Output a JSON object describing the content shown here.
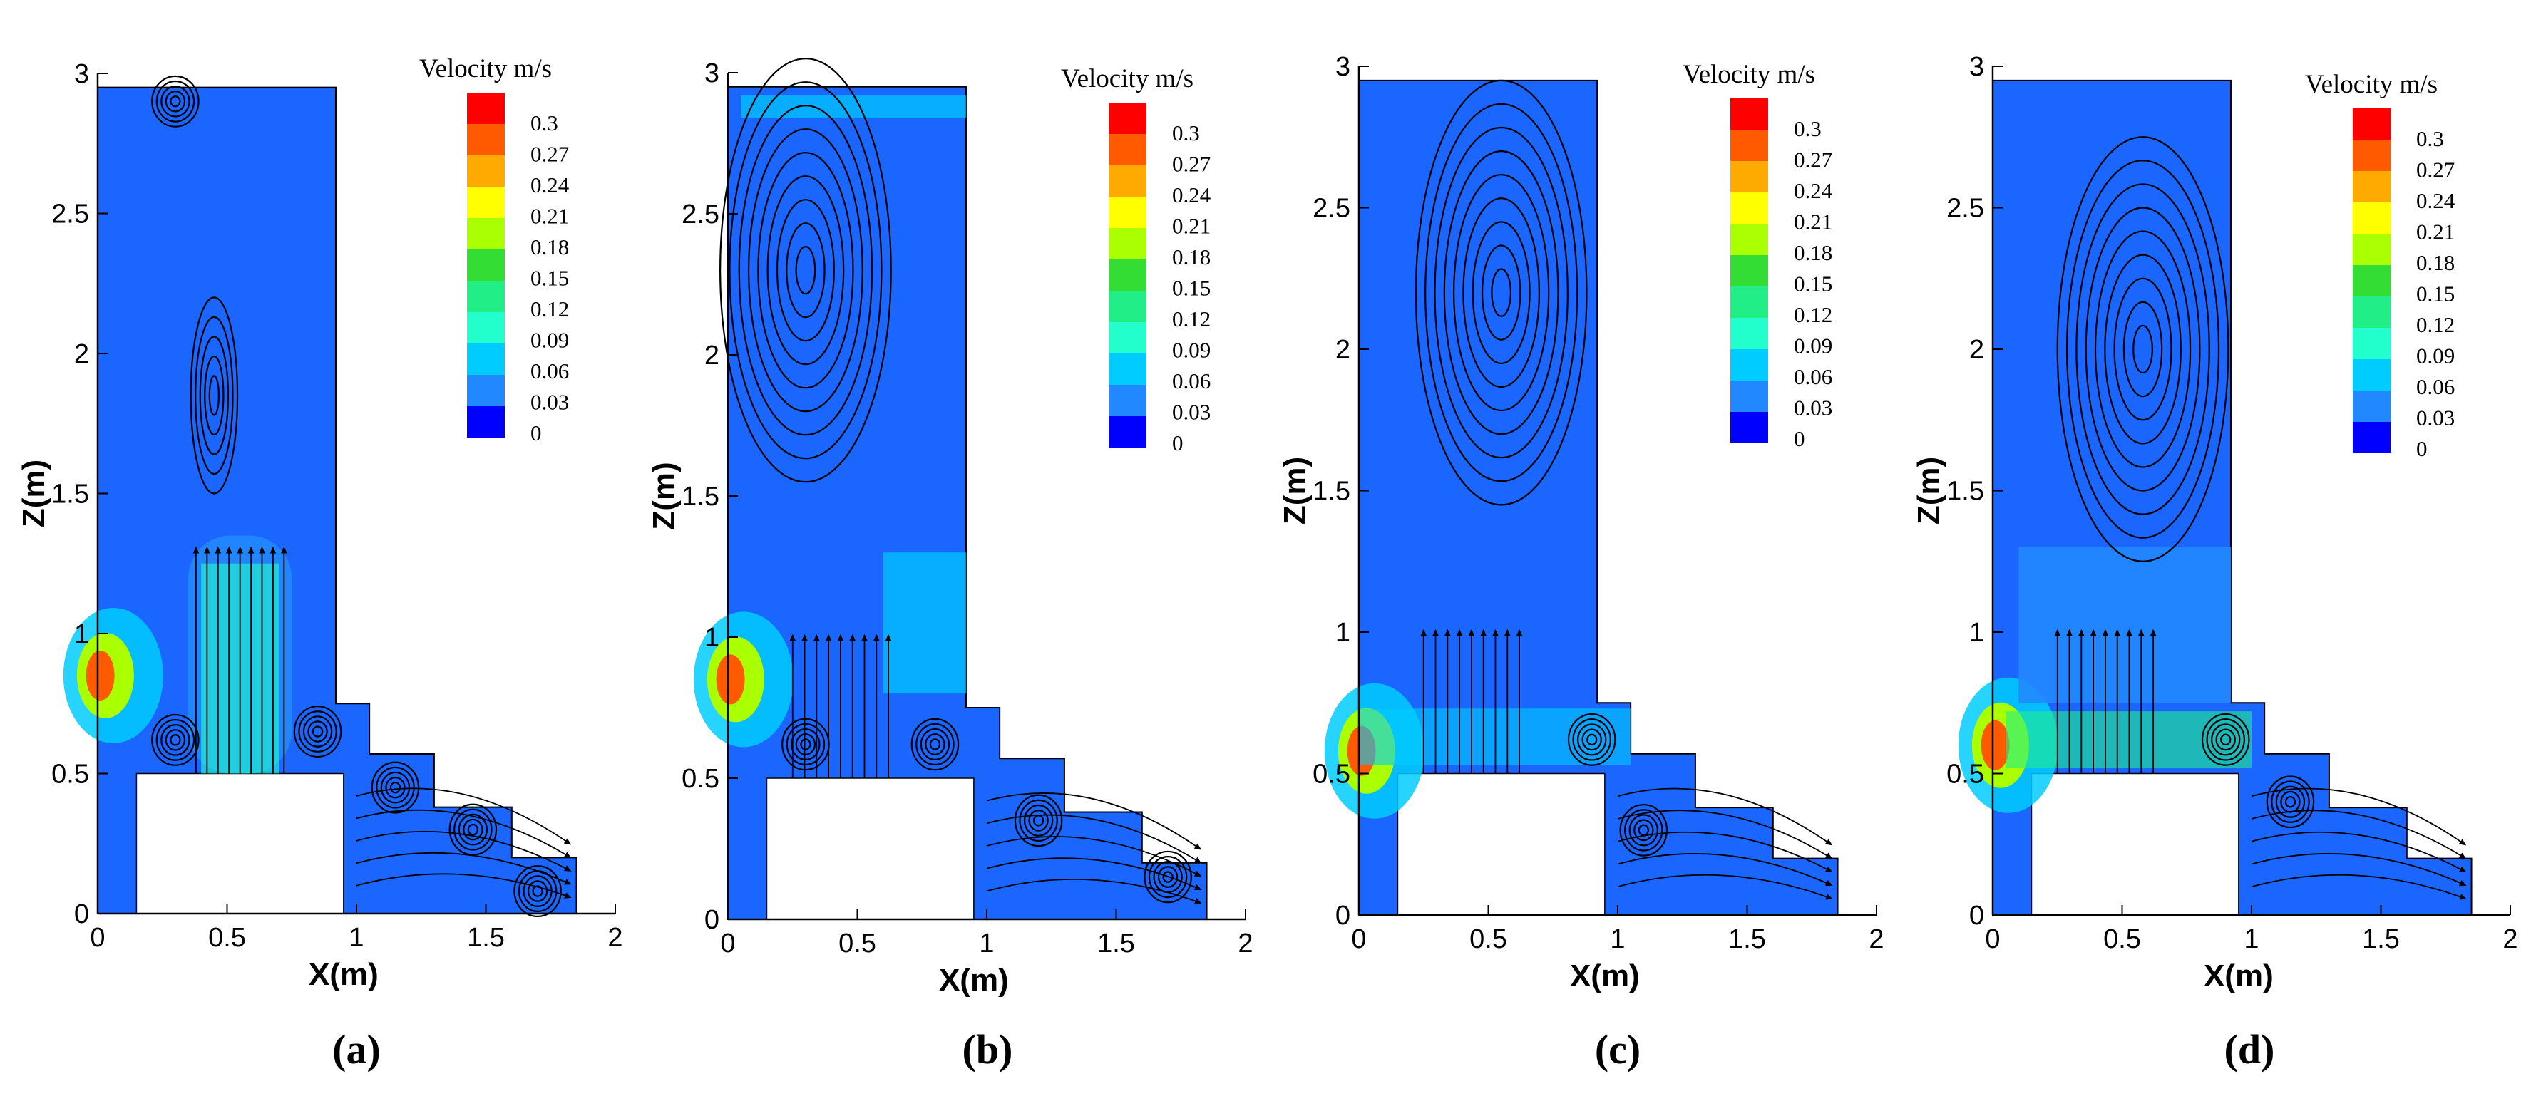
{
  "chart_data": [
    {
      "type": "contour",
      "panel_label": "(a)",
      "xlabel": "X(m)",
      "ylabel": "Z(m)",
      "xlim": [
        0,
        2
      ],
      "ylim": [
        0,
        3
      ],
      "x_ticks": [
        "0",
        "0.5",
        "1",
        "1.5",
        "2"
      ],
      "y_ticks": [
        "0",
        "0.5",
        "1",
        "1.5",
        "2",
        "2.5",
        "3"
      ],
      "colorbar_title": "Velocity m/s",
      "colorbar_levels": [
        "0.3",
        "0.27",
        "0.24",
        "0.21",
        "0.18",
        "0.15",
        "0.12",
        "0.09",
        "0.06",
        "0.03",
        "0"
      ],
      "inlet_x": 0.0,
      "inlet_z": 0.85,
      "vortex_centers": [
        [
          0.3,
          2.9
        ],
        [
          0.45,
          1.85
        ],
        [
          0.3,
          0.62
        ],
        [
          0.85,
          0.65
        ],
        [
          1.15,
          0.45
        ],
        [
          1.45,
          0.3
        ],
        [
          1.7,
          0.08
        ]
      ]
    },
    {
      "type": "contour",
      "panel_label": "(b)",
      "xlabel": "X(m)",
      "ylabel": "Z(m)",
      "xlim": [
        0,
        2
      ],
      "ylim": [
        0,
        3
      ],
      "x_ticks": [
        "0",
        "0.5",
        "1",
        "1.5",
        "2"
      ],
      "y_ticks": [
        "0",
        "0.5",
        "1",
        "1.5",
        "2",
        "2.5",
        "3"
      ],
      "colorbar_title": "Velocity m/s",
      "colorbar_levels": [
        "0.3",
        "0.27",
        "0.24",
        "0.21",
        "0.18",
        "0.15",
        "0.12",
        "0.09",
        "0.06",
        "0.03",
        "0"
      ],
      "inlet_x": 0.0,
      "inlet_z": 0.85,
      "vortex_centers": [
        [
          0.3,
          2.3
        ],
        [
          0.3,
          0.62
        ],
        [
          0.8,
          0.62
        ],
        [
          1.2,
          0.35
        ],
        [
          1.7,
          0.15
        ]
      ]
    },
    {
      "type": "contour",
      "panel_label": "(c)",
      "xlabel": "X(m)",
      "ylabel": "Z(m)",
      "xlim": [
        0,
        2
      ],
      "ylim": [
        0,
        3
      ],
      "x_ticks": [
        "0",
        "0.5",
        "1",
        "1.5",
        "2"
      ],
      "y_ticks": [
        "0",
        "0.5",
        "1",
        "1.5",
        "2",
        "2.5",
        "3"
      ],
      "colorbar_title": "Velocity m/s",
      "colorbar_levels": [
        "0.3",
        "0.27",
        "0.24",
        "0.21",
        "0.18",
        "0.15",
        "0.12",
        "0.09",
        "0.06",
        "0.03",
        "0"
      ],
      "inlet_x": 0.0,
      "inlet_z": 0.58,
      "vortex_centers": [
        [
          0.55,
          2.2
        ],
        [
          0.9,
          0.62
        ],
        [
          1.1,
          0.3
        ]
      ]
    },
    {
      "type": "contour",
      "panel_label": "(d)",
      "xlabel": "X(m)",
      "ylabel": "Z(m)",
      "xlim": [
        0,
        2
      ],
      "ylim": [
        0,
        3
      ],
      "x_ticks": [
        "0",
        "0.5",
        "1",
        "1.5",
        "2"
      ],
      "y_ticks": [
        "0",
        "0.5",
        "1",
        "1.5",
        "2",
        "2.5",
        "3"
      ],
      "colorbar_title": "Velocity m/s",
      "colorbar_levels": [
        "0.3",
        "0.27",
        "0.24",
        "0.21",
        "0.18",
        "0.15",
        "0.12",
        "0.09",
        "0.06",
        "0.03",
        "0"
      ],
      "inlet_x": 0.0,
      "inlet_z": 0.6,
      "vortex_centers": [
        [
          0.58,
          2.0
        ],
        [
          0.9,
          0.62
        ],
        [
          1.15,
          0.4
        ]
      ]
    }
  ],
  "colors": {
    "field": "#1a66ff",
    "colorbar": [
      "#ff0000",
      "#ff5a00",
      "#ffaa00",
      "#ffff00",
      "#aaff00",
      "#33dd33",
      "#22ee88",
      "#22ffcc",
      "#00ccff",
      "#2288ff",
      "#0000ff"
    ]
  }
}
